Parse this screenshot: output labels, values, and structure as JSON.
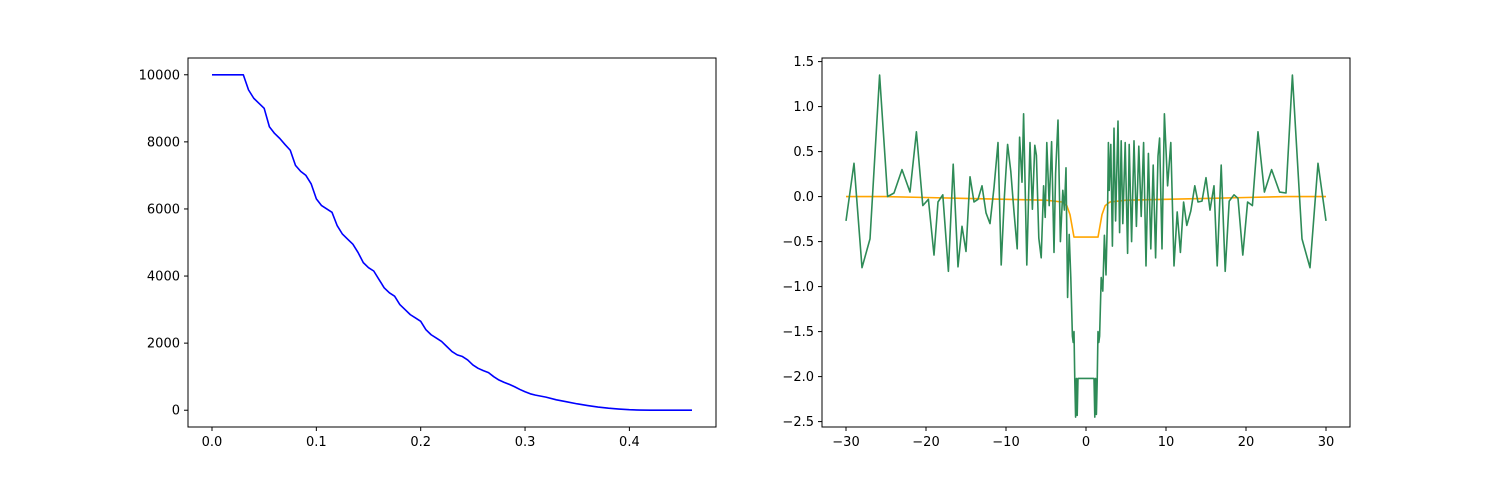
{
  "chart_data": [
    {
      "type": "line",
      "title": "",
      "xlabel": "",
      "ylabel": "",
      "xlim": [
        -0.023,
        0.483
      ],
      "ylim": [
        -500,
        10500
      ],
      "xticks": [
        0.0,
        0.1,
        0.2,
        0.3,
        0.4
      ],
      "xtick_labels": [
        "0.0",
        "0.1",
        "0.2",
        "0.3",
        "0.4"
      ],
      "yticks": [
        0,
        2000,
        4000,
        6000,
        8000,
        10000
      ],
      "ytick_labels": [
        "0",
        "2000",
        "4000",
        "6000",
        "8000",
        "10000"
      ],
      "grid": false,
      "series": [
        {
          "color": "#0000ff",
          "points": [
            [
              0.0,
              10000
            ],
            [
              0.01,
              10000
            ],
            [
              0.02,
              10000
            ],
            [
              0.03,
              10000
            ],
            [
              0.035,
              9550
            ],
            [
              0.04,
              9300
            ],
            [
              0.045,
              9150
            ],
            [
              0.05,
              9000
            ],
            [
              0.055,
              8450
            ],
            [
              0.06,
              8250
            ],
            [
              0.065,
              8100
            ],
            [
              0.07,
              7920
            ],
            [
              0.075,
              7750
            ],
            [
              0.08,
              7300
            ],
            [
              0.085,
              7120
            ],
            [
              0.09,
              7000
            ],
            [
              0.095,
              6750
            ],
            [
              0.1,
              6300
            ],
            [
              0.105,
              6100
            ],
            [
              0.11,
              6000
            ],
            [
              0.115,
              5900
            ],
            [
              0.12,
              5500
            ],
            [
              0.125,
              5250
            ],
            [
              0.13,
              5100
            ],
            [
              0.135,
              4950
            ],
            [
              0.14,
              4700
            ],
            [
              0.145,
              4400
            ],
            [
              0.15,
              4250
            ],
            [
              0.155,
              4150
            ],
            [
              0.16,
              3900
            ],
            [
              0.165,
              3650
            ],
            [
              0.17,
              3500
            ],
            [
              0.175,
              3400
            ],
            [
              0.18,
              3150
            ],
            [
              0.185,
              3000
            ],
            [
              0.19,
              2850
            ],
            [
              0.195,
              2750
            ],
            [
              0.2,
              2650
            ],
            [
              0.205,
              2400
            ],
            [
              0.21,
              2250
            ],
            [
              0.215,
              2150
            ],
            [
              0.22,
              2050
            ],
            [
              0.225,
              1900
            ],
            [
              0.23,
              1750
            ],
            [
              0.235,
              1650
            ],
            [
              0.24,
              1600
            ],
            [
              0.245,
              1500
            ],
            [
              0.25,
              1350
            ],
            [
              0.255,
              1250
            ],
            [
              0.26,
              1180
            ],
            [
              0.265,
              1120
            ],
            [
              0.27,
              1000
            ],
            [
              0.275,
              900
            ],
            [
              0.28,
              830
            ],
            [
              0.285,
              770
            ],
            [
              0.29,
              700
            ],
            [
              0.295,
              620
            ],
            [
              0.3,
              550
            ],
            [
              0.305,
              490
            ],
            [
              0.31,
              450
            ],
            [
              0.32,
              390
            ],
            [
              0.33,
              310
            ],
            [
              0.34,
              250
            ],
            [
              0.35,
              190
            ],
            [
              0.36,
              140
            ],
            [
              0.37,
              95
            ],
            [
              0.38,
              60
            ],
            [
              0.39,
              35
            ],
            [
              0.4,
              15
            ],
            [
              0.41,
              5
            ],
            [
              0.42,
              0
            ],
            [
              0.44,
              0
            ],
            [
              0.46,
              0
            ]
          ]
        }
      ]
    },
    {
      "type": "line",
      "title": "",
      "xlabel": "",
      "ylabel": "",
      "xlim": [
        -33.0,
        33.0
      ],
      "ylim": [
        -2.56,
        1.54
      ],
      "xticks": [
        -30,
        -20,
        -10,
        0,
        10,
        20,
        30
      ],
      "xtick_labels": [
        "−30",
        "−20",
        "−10",
        "0",
        "10",
        "20",
        "30"
      ],
      "yticks": [
        -2.5,
        -2.0,
        -1.5,
        -1.0,
        -0.5,
        0.0,
        0.5,
        1.0,
        1.5
      ],
      "ytick_labels": [
        "−2.5",
        "−2.0",
        "−1.5",
        "−1.0",
        "−0.5",
        "0.0",
        "0.5",
        "1.0",
        "1.5"
      ],
      "grid": false,
      "series": [
        {
          "color": "#ffa500",
          "points": [
            [
              -30,
              0.0
            ],
            [
              -25,
              0.0
            ],
            [
              -20,
              -0.01
            ],
            [
              -15,
              -0.02
            ],
            [
              -10,
              -0.03
            ],
            [
              -5,
              -0.04
            ],
            [
              -3,
              -0.06
            ],
            [
              -2.4,
              -0.1
            ],
            [
              -2,
              -0.2
            ],
            [
              -1.7,
              -0.35
            ],
            [
              -1.5,
              -0.45
            ],
            [
              -1,
              -0.45
            ],
            [
              0,
              -0.45
            ],
            [
              1,
              -0.45
            ],
            [
              1.5,
              -0.45
            ],
            [
              1.7,
              -0.35
            ],
            [
              2,
              -0.2
            ],
            [
              2.4,
              -0.1
            ],
            [
              3,
              -0.06
            ],
            [
              5,
              -0.04
            ],
            [
              10,
              -0.03
            ],
            [
              15,
              -0.02
            ],
            [
              20,
              -0.01
            ],
            [
              25,
              0.0
            ],
            [
              30,
              0.0
            ]
          ]
        },
        {
          "color": "#2e8b57",
          "points": [
            [
              -30.0,
              -0.27
            ],
            [
              -29.0,
              0.37
            ],
            [
              -28.0,
              -0.79
            ],
            [
              -27.0,
              -0.47
            ],
            [
              -25.8,
              1.35
            ],
            [
              -24.8,
              0.0
            ],
            [
              -24.0,
              0.04
            ],
            [
              -23.0,
              0.3
            ],
            [
              -22.0,
              0.05
            ],
            [
              -21.2,
              0.72
            ],
            [
              -20.4,
              -0.1
            ],
            [
              -19.7,
              -0.03
            ],
            [
              -19.0,
              -0.65
            ],
            [
              -18.5,
              -0.06
            ],
            [
              -17.9,
              0.02
            ],
            [
              -17.2,
              -0.83
            ],
            [
              -16.6,
              0.36
            ],
            [
              -16.0,
              -0.78
            ],
            [
              -15.5,
              -0.33
            ],
            [
              -15.0,
              -0.61
            ],
            [
              -14.5,
              0.22
            ],
            [
              -14.0,
              -0.06
            ],
            [
              -13.5,
              -0.03
            ],
            [
              -13.0,
              0.12
            ],
            [
              -12.5,
              -0.18
            ],
            [
              -12.0,
              -0.3
            ],
            [
              -11.5,
              0.1
            ],
            [
              -11.0,
              0.6
            ],
            [
              -10.6,
              -0.76
            ],
            [
              -10.2,
              0.0
            ],
            [
              -9.8,
              0.58
            ],
            [
              -9.4,
              0.28
            ],
            [
              -9.0,
              -0.17
            ],
            [
              -8.6,
              -0.58
            ],
            [
              -8.3,
              0.66
            ],
            [
              -8.0,
              0.16
            ],
            [
              -7.8,
              0.92
            ],
            [
              -7.4,
              -0.76
            ],
            [
              -7.0,
              0.6
            ],
            [
              -6.7,
              -0.14
            ],
            [
              -6.4,
              0.57
            ],
            [
              -6.2,
              0.46
            ],
            [
              -5.9,
              -0.46
            ],
            [
              -5.6,
              -0.68
            ],
            [
              -5.3,
              0.12
            ],
            [
              -5.1,
              -0.23
            ],
            [
              -4.9,
              0.6
            ],
            [
              -4.6,
              -0.1
            ],
            [
              -4.3,
              0.61
            ],
            [
              -4.0,
              -0.62
            ],
            [
              -3.8,
              0.26
            ],
            [
              -3.5,
              0.85
            ],
            [
              -3.2,
              -0.5
            ],
            [
              -2.9,
              0.07
            ],
            [
              -2.7,
              -0.15
            ],
            [
              -2.5,
              0.32
            ],
            [
              -2.3,
              -1.12
            ],
            [
              -2.1,
              -0.42
            ],
            [
              -1.9,
              -0.9
            ],
            [
              -1.7,
              -1.55
            ],
            [
              -1.6,
              -1.62
            ],
            [
              -1.5,
              -1.5
            ],
            [
              -1.4,
              -2.05
            ],
            [
              -1.3,
              -2.45
            ],
            [
              -1.2,
              -2.02
            ],
            [
              -1.1,
              -2.43
            ],
            [
              -1.0,
              -2.02
            ],
            [
              0.0,
              -2.02
            ],
            [
              1.0,
              -2.02
            ],
            [
              1.1,
              -2.45
            ],
            [
              1.2,
              -2.02
            ],
            [
              1.3,
              -2.42
            ],
            [
              1.4,
              -2.05
            ],
            [
              1.5,
              -1.5
            ],
            [
              1.6,
              -1.62
            ],
            [
              1.7,
              -1.55
            ],
            [
              1.9,
              -0.9
            ],
            [
              2.1,
              -1.05
            ],
            [
              2.3,
              -0.43
            ],
            [
              2.5,
              -0.87
            ],
            [
              2.7,
              -0.15
            ],
            [
              2.8,
              0.6
            ],
            [
              2.9,
              0.07
            ],
            [
              3.1,
              0.58
            ],
            [
              3.3,
              -0.55
            ],
            [
              3.5,
              0.76
            ],
            [
              3.7,
              -0.27
            ],
            [
              4.0,
              0.84
            ],
            [
              4.2,
              -0.4
            ],
            [
              4.4,
              0.62
            ],
            [
              4.6,
              -0.3
            ],
            [
              4.9,
              0.6
            ],
            [
              5.2,
              -0.63
            ],
            [
              5.4,
              0.58
            ],
            [
              5.7,
              -0.5
            ],
            [
              6.0,
              0.62
            ],
            [
              6.3,
              -0.33
            ],
            [
              6.6,
              0.56
            ],
            [
              6.9,
              -0.22
            ],
            [
              7.2,
              0.6
            ],
            [
              7.5,
              -0.77
            ],
            [
              7.8,
              0.48
            ],
            [
              8.1,
              -0.58
            ],
            [
              8.4,
              0.35
            ],
            [
              8.7,
              -0.68
            ],
            [
              9.0,
              0.45
            ],
            [
              9.2,
              0.65
            ],
            [
              9.5,
              -0.58
            ],
            [
              9.8,
              0.92
            ],
            [
              10.2,
              0.12
            ],
            [
              10.6,
              0.6
            ],
            [
              11.0,
              -0.77
            ],
            [
              11.4,
              -0.17
            ],
            [
              11.8,
              -0.62
            ],
            [
              12.2,
              -0.06
            ],
            [
              12.6,
              -0.32
            ],
            [
              13.1,
              -0.16
            ],
            [
              13.6,
              0.12
            ],
            [
              14.0,
              -0.06
            ],
            [
              14.5,
              -0.05
            ],
            [
              15.0,
              0.21
            ],
            [
              15.5,
              -0.15
            ],
            [
              16.0,
              0.12
            ],
            [
              16.4,
              -0.77
            ],
            [
              16.9,
              0.35
            ],
            [
              17.4,
              -0.83
            ],
            [
              17.9,
              -0.05
            ],
            [
              18.5,
              0.02
            ],
            [
              19.0,
              -0.02
            ],
            [
              19.6,
              -0.65
            ],
            [
              20.2,
              -0.06
            ],
            [
              20.8,
              -0.1
            ],
            [
              21.5,
              0.72
            ],
            [
              22.3,
              0.05
            ],
            [
              23.2,
              0.3
            ],
            [
              24.2,
              0.05
            ],
            [
              25.0,
              0.04
            ],
            [
              25.8,
              1.35
            ],
            [
              27.0,
              -0.47
            ],
            [
              28.0,
              -0.79
            ],
            [
              29.0,
              0.37
            ],
            [
              30.0,
              -0.27
            ]
          ]
        }
      ]
    }
  ]
}
